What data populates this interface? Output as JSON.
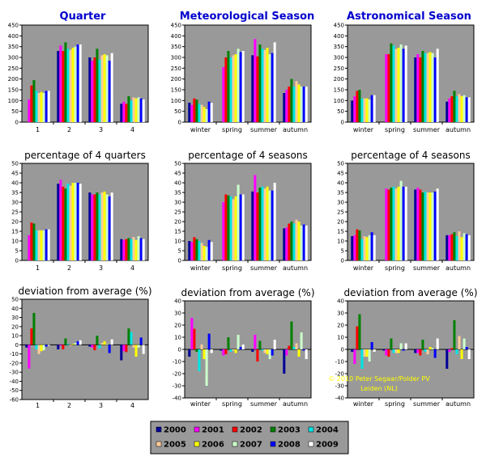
{
  "columns": [
    {
      "title": "Quarter"
    },
    {
      "title": "Meteorological Season"
    },
    {
      "title": "Astronomical Season"
    }
  ],
  "credit": {
    "line1": "© 2010 Peter Segaar/Polder PV",
    "line2": "Leiden (NL)"
  },
  "colors": {
    "plot_background": "#999999",
    "title_blue": "#0000cc",
    "credit_text": "#ffff00"
  },
  "legend": {
    "items": [
      {
        "label": "2000",
        "color": "#000099"
      },
      {
        "label": "2001",
        "color": "#ff00ff"
      },
      {
        "label": "2002",
        "color": "#ff0000"
      },
      {
        "label": "2003",
        "color": "#008000"
      },
      {
        "label": "2004",
        "color": "#00e5e5"
      },
      {
        "label": "2005",
        "color": "#ffcc99"
      },
      {
        "label": "2006",
        "color": "#ffff00"
      },
      {
        "label": "2007",
        "color": "#ccffcc"
      },
      {
        "label": "2008",
        "color": "#0000ff"
      },
      {
        "label": "2009",
        "color": "#ffffff"
      }
    ]
  },
  "chart_data": [
    {
      "type": "bar",
      "title": "",
      "categories": [
        "1",
        "2",
        "3",
        "4"
      ],
      "ylim": [
        0,
        450
      ],
      "ytick_step": 50,
      "series": [
        {
          "name": "2000",
          "values": [
            0,
            330,
            300,
            85
          ]
        },
        {
          "name": "2001",
          "values": [
            105,
            355,
            285,
            95
          ]
        },
        {
          "name": "2002",
          "values": [
            170,
            330,
            300,
            85
          ]
        },
        {
          "name": "2003",
          "values": [
            195,
            370,
            340,
            120
          ]
        },
        {
          "name": "2004",
          "values": [
            145,
            340,
            290,
            100
          ]
        },
        {
          "name": "2005",
          "values": [
            135,
            335,
            310,
            115
          ]
        },
        {
          "name": "2006",
          "values": [
            140,
            345,
            315,
            110
          ]
        },
        {
          "name": "2007",
          "values": [
            135,
            350,
            310,
            115
          ]
        },
        {
          "name": "2008",
          "values": [
            145,
            360,
            285,
            110
          ]
        },
        {
          "name": "2009",
          "values": [
            145,
            360,
            320,
            105
          ]
        }
      ]
    },
    {
      "type": "bar",
      "title": "",
      "categories": [
        "winter",
        "spring",
        "summer",
        "autumn"
      ],
      "ylim": [
        0,
        450
      ],
      "ytick_step": 50,
      "series": [
        {
          "name": "2000",
          "values": [
            90,
            0,
            310,
            135
          ]
        },
        {
          "name": "2001",
          "values": [
            80,
            255,
            385,
            150
          ]
        },
        {
          "name": "2002",
          "values": [
            110,
            300,
            305,
            165
          ]
        },
        {
          "name": "2003",
          "values": [
            105,
            330,
            360,
            200
          ]
        },
        {
          "name": "2004",
          "values": [
            85,
            300,
            340,
            165
          ]
        },
        {
          "name": "2005",
          "values": [
            80,
            310,
            335,
            190
          ]
        },
        {
          "name": "2006",
          "values": [
            70,
            315,
            345,
            175
          ]
        },
        {
          "name": "2007",
          "values": [
            60,
            340,
            315,
            165
          ]
        },
        {
          "name": "2008",
          "values": [
            95,
            325,
            320,
            165
          ]
        },
        {
          "name": "2009",
          "values": [
            90,
            330,
            370,
            165
          ]
        }
      ]
    },
    {
      "type": "bar",
      "title": "",
      "categories": [
        "winter",
        "spring",
        "summer",
        "autumn"
      ],
      "ylim": [
        0,
        450
      ],
      "ytick_step": 50,
      "series": [
        {
          "name": "2000",
          "values": [
            100,
            0,
            300,
            95
          ]
        },
        {
          "name": "2001",
          "values": [
            120,
            315,
            315,
            110
          ]
        },
        {
          "name": "2002",
          "values": [
            145,
            315,
            300,
            120
          ]
        },
        {
          "name": "2003",
          "values": [
            150,
            365,
            330,
            145
          ]
        },
        {
          "name": "2004",
          "values": [
            110,
            355,
            320,
            120
          ]
        },
        {
          "name": "2005",
          "values": [
            110,
            340,
            320,
            130
          ]
        },
        {
          "name": "2006",
          "values": [
            110,
            345,
            325,
            120
          ]
        },
        {
          "name": "2007",
          "values": [
            105,
            360,
            320,
            125
          ]
        },
        {
          "name": "2008",
          "values": [
            125,
            340,
            300,
            115
          ]
        },
        {
          "name": "2009",
          "values": [
            125,
            355,
            340,
            115
          ]
        }
      ]
    },
    {
      "type": "bar",
      "title": "percentage of 4 quarters",
      "categories": [
        "1",
        "2",
        "3",
        "4"
      ],
      "ylim": [
        0,
        50
      ],
      "ytick_step": 5,
      "series": [
        {
          "name": "2000",
          "values": [
            0,
            39.5,
            35,
            11
          ]
        },
        {
          "name": "2001",
          "values": [
            13,
            41.5,
            34,
            10.5
          ]
        },
        {
          "name": "2002",
          "values": [
            19.5,
            38,
            34,
            11
          ]
        },
        {
          "name": "2003",
          "values": [
            19,
            37,
            35,
            11.5
          ]
        },
        {
          "name": "2004",
          "values": [
            15.5,
            39.5,
            34,
            11
          ]
        },
        {
          "name": "2005",
          "values": [
            15.5,
            38.5,
            35,
            12
          ]
        },
        {
          "name": "2006",
          "values": [
            15.5,
            40,
            35.5,
            10.5
          ]
        },
        {
          "name": "2007",
          "values": [
            15.5,
            40,
            34,
            12.5
          ]
        },
        {
          "name": "2008",
          "values": [
            16,
            40,
            33,
            11.5
          ]
        },
        {
          "name": "2009",
          "values": [
            16,
            39.5,
            35,
            11
          ]
        }
      ]
    },
    {
      "type": "bar",
      "title": "percentage of 4 seasons",
      "categories": [
        "winter",
        "spring",
        "summer",
        "autumn"
      ],
      "ylim": [
        0,
        50
      ],
      "ytick_step": 5,
      "series": [
        {
          "name": "2000",
          "values": [
            10,
            0,
            35.5,
            16.5
          ]
        },
        {
          "name": "2001",
          "values": [
            9.5,
            30,
            44,
            17
          ]
        },
        {
          "name": "2002",
          "values": [
            12,
            34,
            35,
            19
          ]
        },
        {
          "name": "2003",
          "values": [
            11,
            33.5,
            37.5,
            20
          ]
        },
        {
          "name": "2004",
          "values": [
            10,
            33,
            38,
            19
          ]
        },
        {
          "name": "2005",
          "values": [
            9,
            31.5,
            37,
            21
          ]
        },
        {
          "name": "2006",
          "values": [
            7.5,
            33,
            38,
            20
          ]
        },
        {
          "name": "2007",
          "values": [
            7,
            39,
            36,
            18
          ]
        },
        {
          "name": "2008",
          "values": [
            10.5,
            34,
            36,
            18.5
          ]
        },
        {
          "name": "2009",
          "values": [
            9.5,
            34,
            40,
            18
          ]
        }
      ]
    },
    {
      "type": "bar",
      "title": "percentage of 4 seasons",
      "categories": [
        "winter",
        "spring",
        "summer",
        "autumn"
      ],
      "ylim": [
        0,
        50
      ],
      "ytick_step": 5,
      "series": [
        {
          "name": "2000",
          "values": [
            12.5,
            0,
            36.5,
            13
          ]
        },
        {
          "name": "2001",
          "values": [
            13,
            37,
            37.5,
            13
          ]
        },
        {
          "name": "2002",
          "values": [
            16,
            36.5,
            36.5,
            13.5
          ]
        },
        {
          "name": "2003",
          "values": [
            15.5,
            37.5,
            35,
            14.5
          ]
        },
        {
          "name": "2004",
          "values": [
            11,
            38,
            35.5,
            12.5
          ]
        },
        {
          "name": "2005",
          "values": [
            12.5,
            37,
            35,
            15
          ]
        },
        {
          "name": "2006",
          "values": [
            12,
            38,
            35,
            12
          ]
        },
        {
          "name": "2007",
          "values": [
            13,
            41,
            35,
            14
          ]
        },
        {
          "name": "2008",
          "values": [
            14.5,
            38,
            35.5,
            13.5
          ]
        },
        {
          "name": "2009",
          "values": [
            13,
            38,
            37,
            13
          ]
        }
      ]
    },
    {
      "type": "bar",
      "title": "deviation from average (%)",
      "categories": [
        "1",
        "2",
        "3",
        "4"
      ],
      "ylim": [
        -60,
        50
      ],
      "ytick_step": 10,
      "series": [
        {
          "name": "2000",
          "values": [
            -3,
            -5,
            -2,
            -17
          ]
        },
        {
          "name": "2001",
          "values": [
            -26,
            -1,
            -3,
            -7
          ]
        },
        {
          "name": "2002",
          "values": [
            18,
            -5,
            -6,
            -8
          ]
        },
        {
          "name": "2003",
          "values": [
            35,
            7,
            10,
            18
          ]
        },
        {
          "name": "2004",
          "values": [
            -5,
            1,
            -4,
            14
          ]
        },
        {
          "name": "2005",
          "values": [
            -10,
            -1,
            2,
            -3
          ]
        },
        {
          "name": "2006",
          "values": [
            -7,
            1,
            4,
            -13
          ]
        },
        {
          "name": "2007",
          "values": [
            -6,
            2,
            1,
            -3
          ]
        },
        {
          "name": "2008",
          "values": [
            -2,
            4,
            -9,
            8
          ]
        },
        {
          "name": "2009",
          "values": [
            -1,
            5,
            6,
            -10
          ]
        }
      ]
    },
    {
      "type": "bar",
      "title": "deviation from average (%)",
      "categories": [
        "winter",
        "spring",
        "summer",
        "autumn"
      ],
      "ylim": [
        -40,
        40
      ],
      "ytick_step": 10,
      "series": [
        {
          "name": "2000",
          "values": [
            -6,
            -1,
            -2,
            -20
          ]
        },
        {
          "name": "2001",
          "values": [
            26,
            -5,
            12,
            -5
          ]
        },
        {
          "name": "2002",
          "values": [
            17,
            -4,
            -10,
            3
          ]
        },
        {
          "name": "2003",
          "values": [
            -2,
            10,
            7,
            23
          ]
        },
        {
          "name": "2004",
          "values": [
            -18,
            -2,
            -1,
            2
          ]
        },
        {
          "name": "2005",
          "values": [
            4,
            -1,
            -3,
            5
          ]
        },
        {
          "name": "2006",
          "values": [
            -8,
            -3,
            -4,
            -6
          ]
        },
        {
          "name": "2007",
          "values": [
            -30,
            12,
            -8,
            14
          ]
        },
        {
          "name": "2008",
          "values": [
            13,
            2,
            -5,
            -1
          ]
        },
        {
          "name": "2009",
          "values": [
            -3,
            4,
            8,
            -8
          ]
        }
      ]
    },
    {
      "type": "bar",
      "title": "deviation from average (%)",
      "categories": [
        "winter",
        "spring",
        "summer",
        "autumn"
      ],
      "ylim": [
        -40,
        40
      ],
      "ytick_step": 10,
      "series": [
        {
          "name": "2000",
          "values": [
            -2,
            -1,
            -3,
            -16
          ]
        },
        {
          "name": "2001",
          "values": [
            -12,
            -5,
            -3,
            -2
          ]
        },
        {
          "name": "2002",
          "values": [
            19,
            -6,
            -5,
            1
          ]
        },
        {
          "name": "2003",
          "values": [
            29,
            9,
            8,
            24
          ]
        },
        {
          "name": "2004",
          "values": [
            -16,
            -3,
            -2,
            -4
          ]
        },
        {
          "name": "2005",
          "values": [
            -6,
            -3,
            -4,
            11
          ]
        },
        {
          "name": "2006",
          "values": [
            -6,
            -3,
            2,
            -8
          ]
        },
        {
          "name": "2007",
          "values": [
            -10,
            5,
            1,
            9
          ]
        },
        {
          "name": "2008",
          "values": [
            6,
            -1,
            -7,
            2
          ]
        },
        {
          "name": "2009",
          "values": [
            -2,
            5,
            9,
            -8
          ]
        }
      ]
    }
  ]
}
